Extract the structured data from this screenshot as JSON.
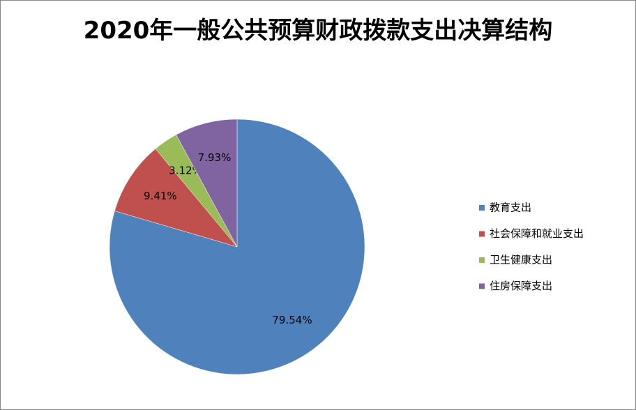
{
  "chart_data": {
    "type": "pie",
    "title": "2020年一般公共预算财政拨款支出决算结构",
    "categories": [
      "教育支出",
      "社会保障和就业支出",
      "卫生健康支出",
      "住房保障支出"
    ],
    "values": [
      79.54,
      9.41,
      3.12,
      7.93
    ],
    "value_labels": [
      "79.54%",
      "9.41%",
      "3.12%",
      "7.93%"
    ],
    "colors": [
      "#4f81bd",
      "#c0504d",
      "#9bbb59",
      "#8064a2"
    ],
    "legend": "right"
  }
}
